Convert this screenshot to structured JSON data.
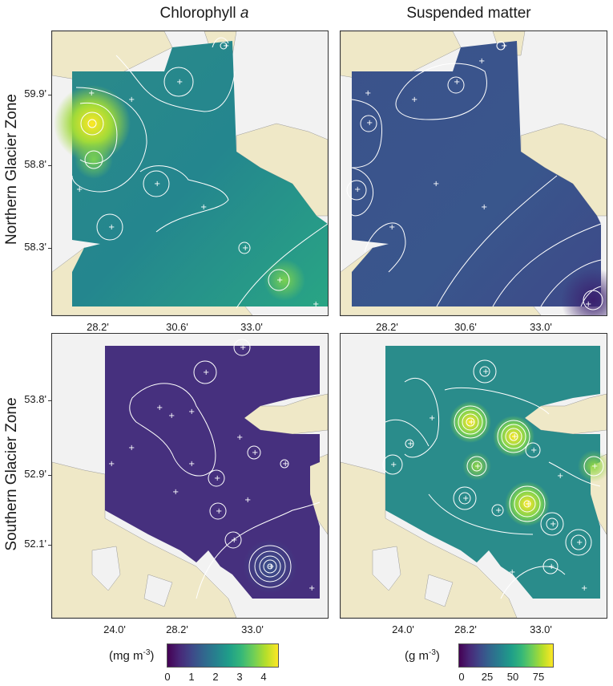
{
  "columns": [
    {
      "title_main": "Chlorophyll ",
      "title_italic": "a"
    },
    {
      "title_main": "Suspended matter",
      "title_italic": ""
    }
  ],
  "rows": [
    {
      "title": "Northern Glacier Zone"
    },
    {
      "title": "Southern Glacier Zone"
    }
  ],
  "axes": {
    "north_y_ticks": [
      "59.9'",
      "58.8'",
      "58.3'"
    ],
    "north_x_ticks": [
      "28.2'",
      "30.6'",
      "33.0'"
    ],
    "south_y_ticks": [
      "53.8'",
      "52.9'",
      "52.1'"
    ],
    "south_x_ticks": [
      "24.0'",
      "28.2'",
      "33.0'"
    ]
  },
  "legends": [
    {
      "unit_prefix": "(mg m",
      "unit_sup": "-3",
      "unit_suffix": ")",
      "labels": [
        "0",
        "1",
        "2",
        "3",
        "4"
      ]
    },
    {
      "unit_prefix": "(g m",
      "unit_sup": "-3",
      "unit_suffix": ")",
      "labels": [
        "0",
        "25",
        "50",
        "75"
      ]
    }
  ],
  "colors": {
    "land": "#efe8c7",
    "background": "#f2f2f2",
    "viridis_low": "#440154",
    "viridis_mid": "#21918c",
    "viridis_high": "#fde725",
    "contour": "#ffffff"
  }
}
